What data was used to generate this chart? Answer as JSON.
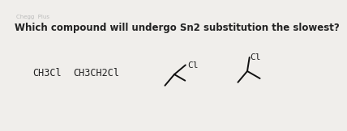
{
  "question": "Which compound will undergo Sn2 substitution the slowest?",
  "question_fontsize": 8.5,
  "bg_color": "#f0eeeb",
  "text_color": "#222222",
  "compound1_label": "CH3Cl",
  "compound2_label": "CH3CH2Cl",
  "ci_label": "Cl",
  "line_color": "#111111",
  "line_width": 1.4,
  "header_text": "Chegg  Plus",
  "header_color": "#bbbbbb",
  "header_fontsize": 5.0
}
